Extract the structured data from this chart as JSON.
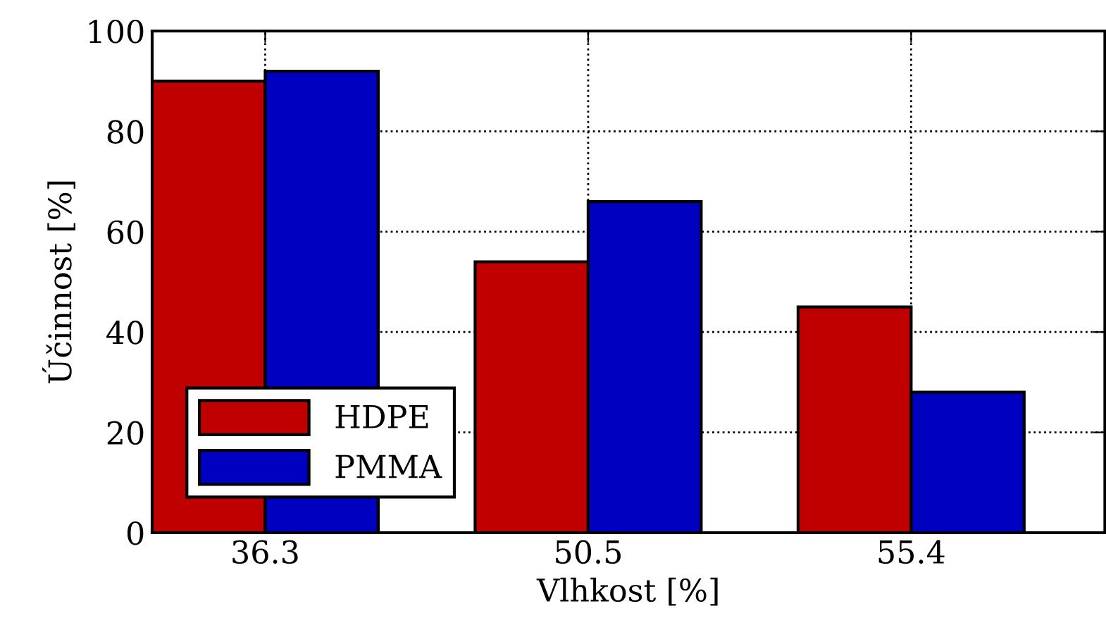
{
  "chart_data": {
    "type": "bar",
    "xlabel": "Vlhkost [%]",
    "ylabel": "Účinnost [%]",
    "categories": [
      "36.3",
      "50.5",
      "55.4"
    ],
    "series": [
      {
        "name": "HDPE",
        "color": "#c00000",
        "values": [
          90,
          54,
          45
        ]
      },
      {
        "name": "PMMA",
        "color": "#0000c0",
        "values": [
          92,
          66,
          28
        ]
      }
    ],
    "ylim": [
      0,
      100
    ],
    "yticks": [
      0,
      20,
      40,
      60,
      80,
      100
    ],
    "grid": true,
    "legend": "bottom left",
    "line_style": "dotted"
  }
}
